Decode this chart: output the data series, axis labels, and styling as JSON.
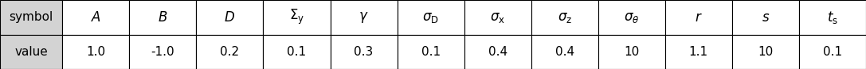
{
  "symbols": [
    "A",
    "B",
    "D",
    "$\\Sigma_{\\mathrm{y}}$",
    "$\\gamma$",
    "$\\sigma_{\\mathrm{D}}$",
    "$\\sigma_{\\mathrm{x}}$",
    "$\\sigma_{\\mathrm{z}}$",
    "$\\sigma_{\\theta}$",
    "r",
    "s",
    "$t_{\\mathrm{s}}$"
  ],
  "values": [
    "1.0",
    "-1.0",
    "0.2",
    "0.1",
    "0.3",
    "0.1",
    "0.4",
    "0.4",
    "10",
    "1.1",
    "10",
    "0.1"
  ],
  "row_labels": [
    "symbol",
    "value"
  ],
  "header_bg": "#d3d3d3",
  "cell_bg": "#ffffff",
  "border_color": "#000000",
  "text_color": "#000000",
  "fontsize": 11,
  "fig_width": 10.87,
  "fig_height": 0.87
}
